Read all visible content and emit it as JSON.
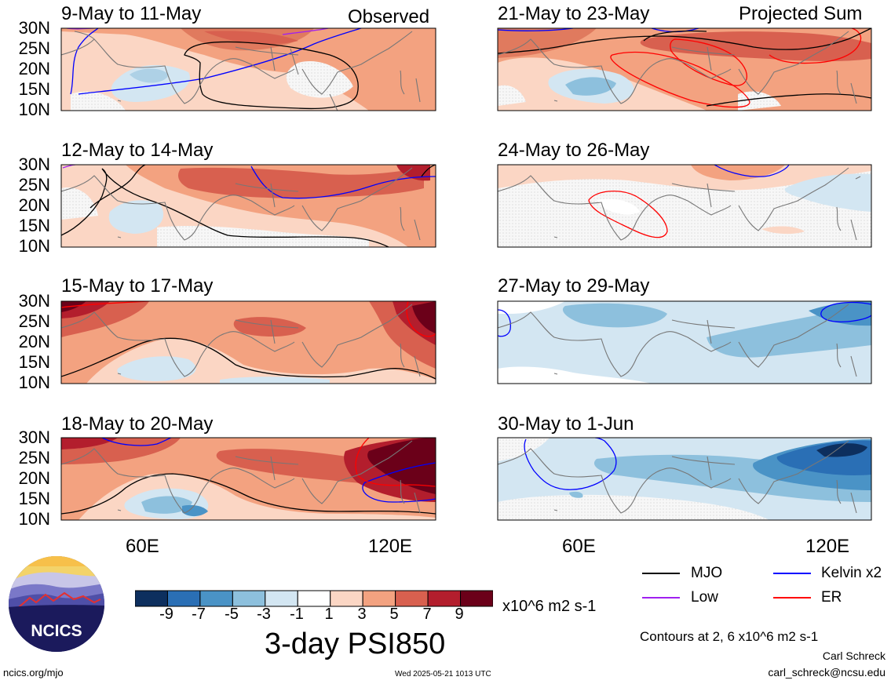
{
  "panels_left": [
    {
      "title": "9-May to 11-May",
      "tag": "Observed"
    },
    {
      "title": "12-May to 14-May",
      "tag": ""
    },
    {
      "title": "15-May to 17-May",
      "tag": ""
    },
    {
      "title": "18-May to 20-May",
      "tag": ""
    }
  ],
  "panels_right": [
    {
      "title": "21-May to 23-May",
      "tag": "Projected Sum"
    },
    {
      "title": "24-May to 26-May",
      "tag": ""
    },
    {
      "title": "27-May to 29-May",
      "tag": ""
    },
    {
      "title": "30-May to 1-Jun",
      "tag": ""
    }
  ],
  "y_ticks": [
    "30N",
    "25N",
    "20N",
    "15N",
    "10N"
  ],
  "x_ticks": [
    "60E",
    "120E"
  ],
  "colorbar": {
    "labels": [
      "-9",
      "-7",
      "-5",
      "-3",
      "-1",
      "1",
      "3",
      "5",
      "7",
      "9"
    ],
    "colors": [
      "#0d2f5e",
      "#2a6fb5",
      "#4a93c6",
      "#8dc0dd",
      "#d3e6f2",
      "#ffffff",
      "#fbd6c4",
      "#f3a280",
      "#d8604f",
      "#b31e2d",
      "#6b0019"
    ],
    "units": "x10^6 m2 s-1",
    "title": "3-day PSI850"
  },
  "legend": {
    "mjo": "MJO",
    "low": "Low",
    "kelvin": "Kelvin x2",
    "er": "ER",
    "colors": {
      "mjo": "#000000",
      "low": "#a020f0",
      "kelvin": "#0000ff",
      "er": "#ff0000"
    }
  },
  "contours_note": "Contours at 2, 6 x10^6 m2 s-1",
  "author": "Carl Schreck",
  "email": "carl_schreck@ncsu.edu",
  "site": "ncics.org/mjo",
  "timestamp": "Wed 2025-05-21 1013 UTC",
  "logo_text": "NCICS"
}
